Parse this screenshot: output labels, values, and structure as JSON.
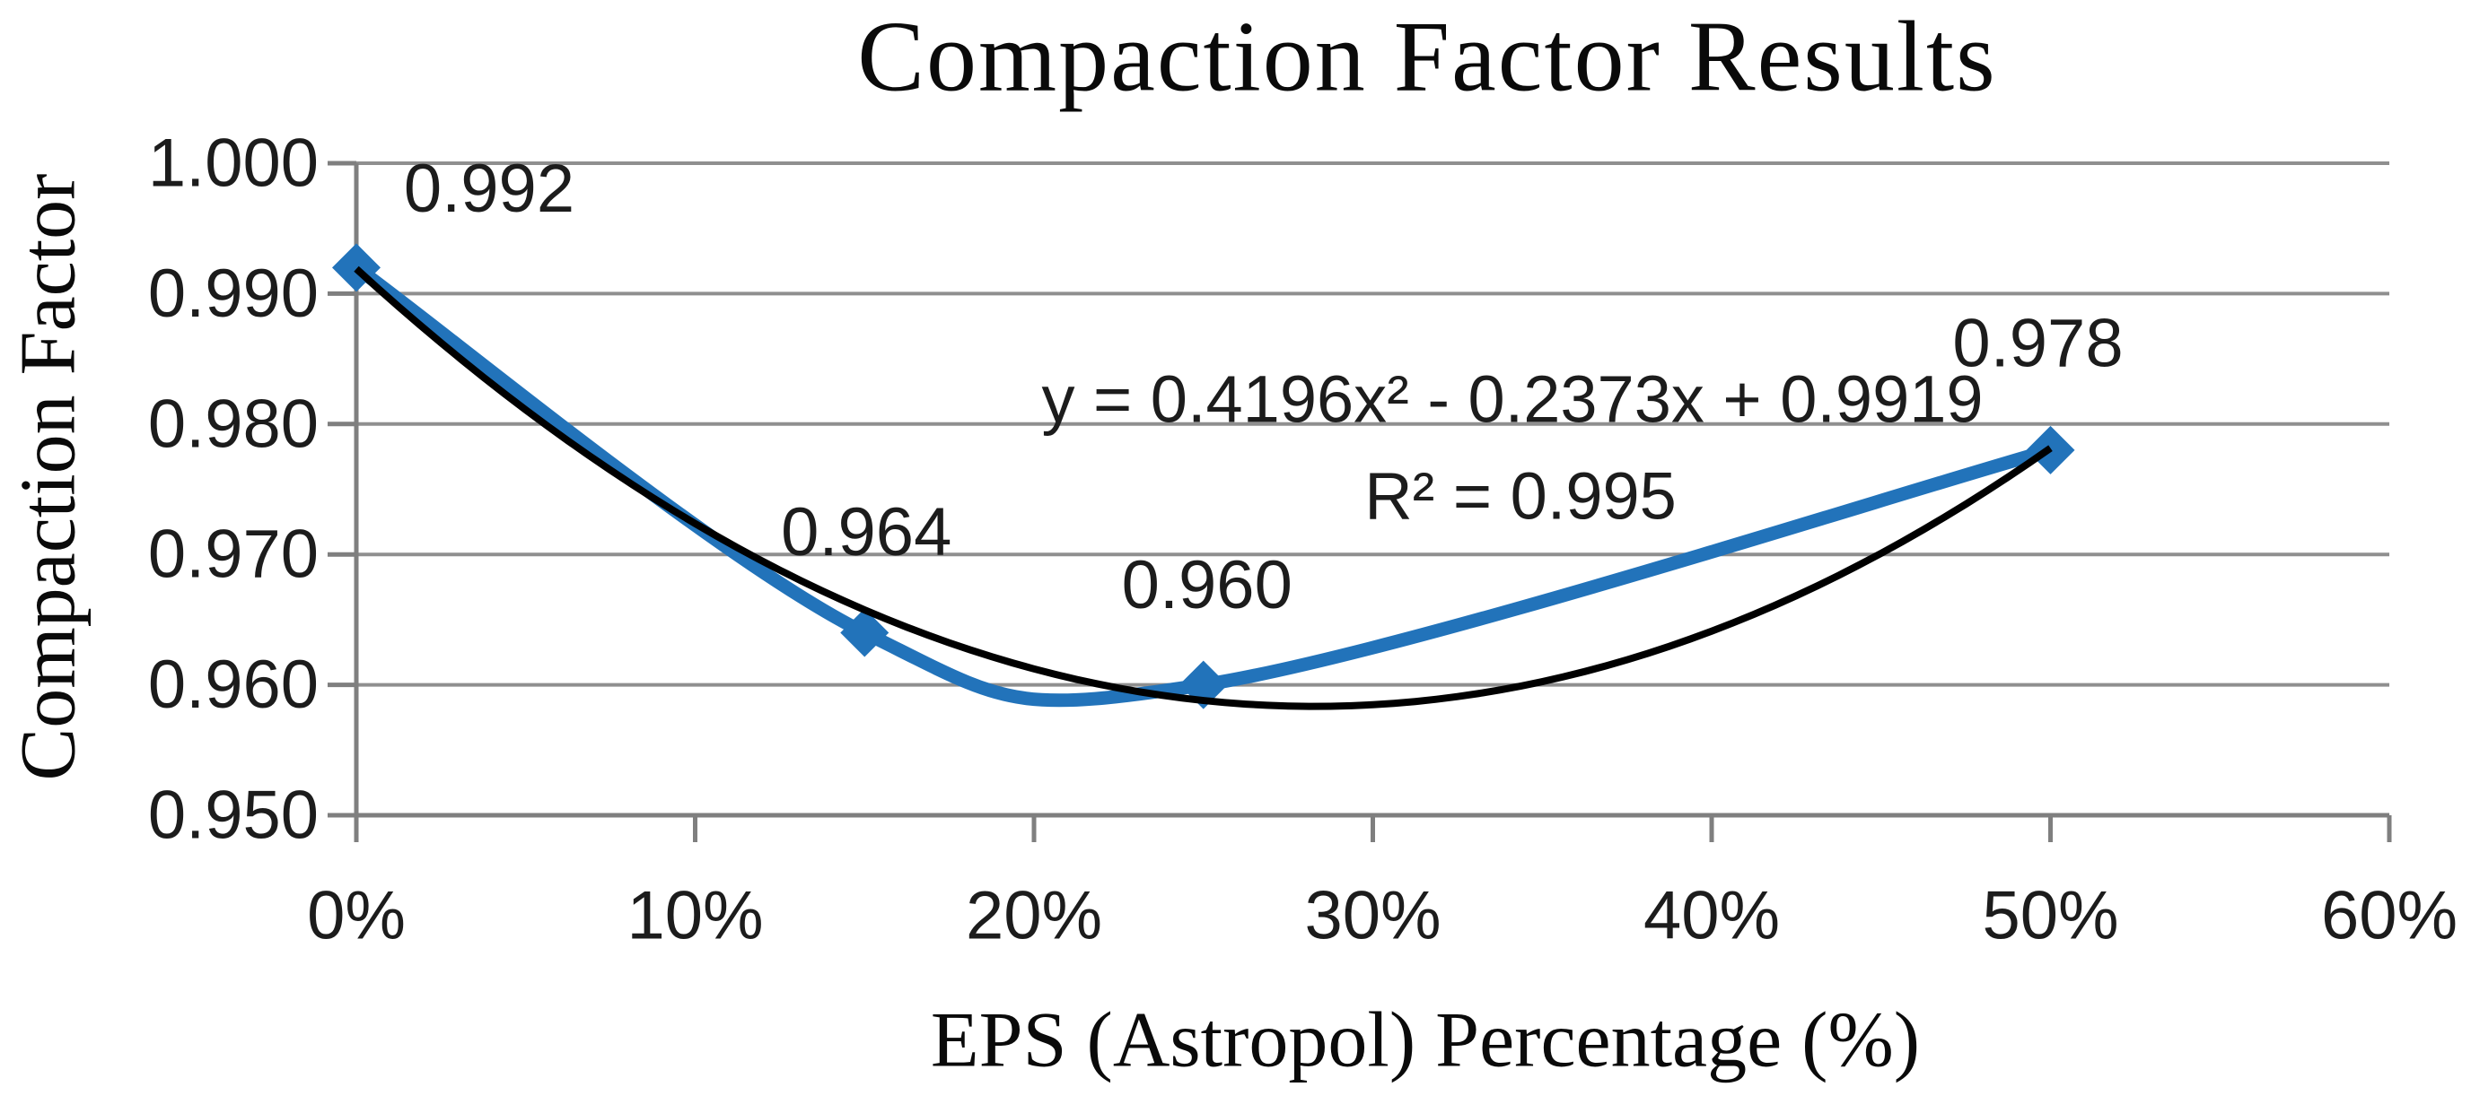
{
  "title": "Compaction Factor Results",
  "axes": {
    "x_title": "EPS (Astropol) Percentage (%)",
    "y_title": "Compaction Factor"
  },
  "annotations": {
    "equation": "y = 0.4196x² - 0.2373x + 0.9919",
    "r_squared": "R² = 0.995"
  },
  "colors": {
    "series_blue": "#2273BA",
    "trendline_black": "#000000",
    "gridline_gray": "#8F8F8F",
    "axis_gray": "#7F7F7F",
    "text_dark": "#1c1c1c",
    "background": "#ffffff"
  },
  "chart_data": {
    "type": "line",
    "title": "Compaction Factor Results",
    "xlabel": "EPS (Astropol) Percentage (%)",
    "ylabel": "Compaction Factor",
    "xlim": [
      0,
      60
    ],
    "ylim": [
      0.95,
      1.0
    ],
    "x_tick_values": [
      0,
      10,
      20,
      30,
      40,
      50,
      60
    ],
    "x_tick_labels": [
      "0%",
      "10%",
      "20%",
      "30%",
      "40%",
      "50%",
      "60%"
    ],
    "y_tick_values": [
      1.0,
      0.99,
      0.98,
      0.97,
      0.96,
      0.95
    ],
    "y_tick_labels": [
      "1.000",
      "0.990",
      "0.980",
      "0.970",
      "0.960",
      "0.950"
    ],
    "grid": "horizontal",
    "legend": "none",
    "series": [
      {
        "name": "Compaction Factor",
        "marker": "diamond",
        "smooth": true,
        "x": [
          0,
          15,
          25,
          50
        ],
        "y": [
          0.992,
          0.964,
          0.96,
          0.978
        ],
        "point_labels": [
          "0.992",
          "0.964",
          "0.960",
          "0.978"
        ]
      }
    ],
    "trendline": {
      "type": "polynomial",
      "degree": 2,
      "coefficients": {
        "a": 0.4196,
        "b": -0.2373,
        "c": 0.9919
      },
      "x_fraction_domain": [
        0,
        0.5
      ],
      "equation": "y = 0.4196x² - 0.2373x + 0.9919",
      "r_squared": "R² = 0.995"
    }
  }
}
